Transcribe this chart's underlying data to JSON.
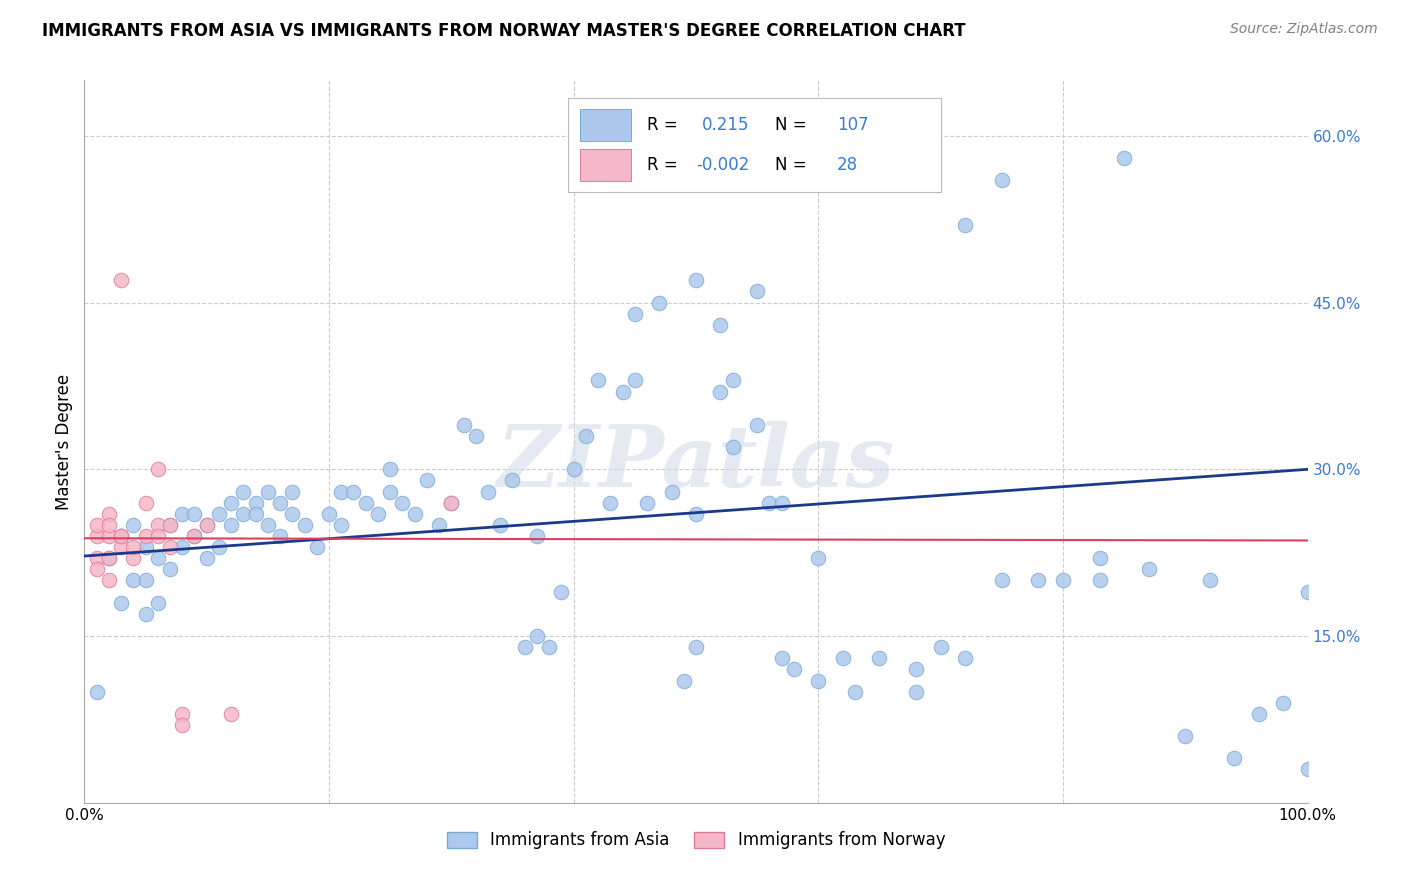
{
  "title": "IMMIGRANTS FROM ASIA VS IMMIGRANTS FROM NORWAY MASTER'S DEGREE CORRELATION CHART",
  "source": "Source: ZipAtlas.com",
  "ylabel": "Master's Degree",
  "xlim": [
    0.0,
    1.0
  ],
  "ylim": [
    0.0,
    0.65
  ],
  "yticks": [
    0.15,
    0.3,
    0.45,
    0.6
  ],
  "xtick_positions": [
    0.0,
    0.2,
    0.4,
    0.6,
    0.8,
    1.0
  ],
  "legend_r_asia": "0.215",
  "legend_n_asia": "107",
  "legend_r_norway": "-0.002",
  "legend_n_norway": "28",
  "asia_color": "#adc8ed",
  "asia_edge_color": "#7aaad4",
  "norway_color": "#f5b8c8",
  "norway_edge_color": "#e07898",
  "asia_line_color": "#1a3a8a",
  "norway_line_color": "#d94060",
  "watermark": "ZIPatlas",
  "background_color": "#ffffff",
  "grid_color": "#cccccc",
  "ytick_color": "#3a7bd5",
  "title_fontsize": 12,
  "source_fontsize": 10,
  "asia_trend_y_start": 0.222,
  "asia_trend_y_end": 0.3,
  "norway_trend_y_start": 0.238,
  "norway_trend_y_end": 0.236,
  "asia_x": [
    0.01,
    0.02,
    0.03,
    0.03,
    0.04,
    0.04,
    0.05,
    0.05,
    0.05,
    0.06,
    0.06,
    0.07,
    0.07,
    0.08,
    0.08,
    0.09,
    0.09,
    0.1,
    0.1,
    0.11,
    0.11,
    0.12,
    0.12,
    0.13,
    0.13,
    0.14,
    0.14,
    0.15,
    0.15,
    0.16,
    0.16,
    0.17,
    0.17,
    0.18,
    0.19,
    0.2,
    0.21,
    0.21,
    0.22,
    0.23,
    0.24,
    0.25,
    0.25,
    0.26,
    0.27,
    0.28,
    0.29,
    0.3,
    0.31,
    0.32,
    0.33,
    0.34,
    0.35,
    0.36,
    0.37,
    0.37,
    0.38,
    0.39,
    0.4,
    0.41,
    0.42,
    0.43,
    0.44,
    0.45,
    0.46,
    0.48,
    0.49,
    0.5,
    0.5,
    0.52,
    0.53,
    0.53,
    0.55,
    0.56,
    0.57,
    0.58,
    0.6,
    0.62,
    0.65,
    0.68,
    0.7,
    0.72,
    0.75,
    0.78,
    0.8,
    0.83,
    0.85,
    0.87,
    0.9,
    0.92,
    0.94,
    0.96,
    0.98,
    1.0,
    1.0,
    0.45,
    0.47,
    0.5,
    0.52,
    0.55,
    0.57,
    0.6,
    0.63,
    0.68,
    0.72,
    0.75,
    0.83
  ],
  "asia_y": [
    0.1,
    0.22,
    0.18,
    0.24,
    0.2,
    0.25,
    0.2,
    0.23,
    0.17,
    0.18,
    0.22,
    0.21,
    0.25,
    0.23,
    0.26,
    0.24,
    0.26,
    0.22,
    0.25,
    0.26,
    0.23,
    0.27,
    0.25,
    0.26,
    0.28,
    0.27,
    0.26,
    0.25,
    0.28,
    0.27,
    0.24,
    0.26,
    0.28,
    0.25,
    0.23,
    0.26,
    0.28,
    0.25,
    0.28,
    0.27,
    0.26,
    0.28,
    0.3,
    0.27,
    0.26,
    0.29,
    0.25,
    0.27,
    0.34,
    0.33,
    0.28,
    0.25,
    0.29,
    0.14,
    0.15,
    0.24,
    0.14,
    0.19,
    0.3,
    0.33,
    0.38,
    0.27,
    0.37,
    0.38,
    0.27,
    0.28,
    0.11,
    0.14,
    0.26,
    0.37,
    0.38,
    0.32,
    0.34,
    0.27,
    0.27,
    0.12,
    0.11,
    0.13,
    0.13,
    0.12,
    0.14,
    0.52,
    0.56,
    0.2,
    0.2,
    0.22,
    0.58,
    0.21,
    0.06,
    0.2,
    0.04,
    0.08,
    0.09,
    0.03,
    0.19,
    0.44,
    0.45,
    0.47,
    0.43,
    0.46,
    0.13,
    0.22,
    0.1,
    0.1,
    0.13,
    0.2,
    0.2
  ],
  "norway_x": [
    0.01,
    0.01,
    0.01,
    0.01,
    0.02,
    0.02,
    0.02,
    0.02,
    0.02,
    0.03,
    0.03,
    0.03,
    0.03,
    0.04,
    0.04,
    0.05,
    0.05,
    0.06,
    0.06,
    0.06,
    0.07,
    0.07,
    0.08,
    0.08,
    0.09,
    0.1,
    0.12,
    0.3
  ],
  "norway_y": [
    0.24,
    0.25,
    0.22,
    0.21,
    0.24,
    0.26,
    0.2,
    0.22,
    0.25,
    0.24,
    0.23,
    0.47,
    0.24,
    0.22,
    0.23,
    0.24,
    0.27,
    0.25,
    0.3,
    0.24,
    0.23,
    0.25,
    0.08,
    0.07,
    0.24,
    0.25,
    0.08,
    0.27
  ]
}
